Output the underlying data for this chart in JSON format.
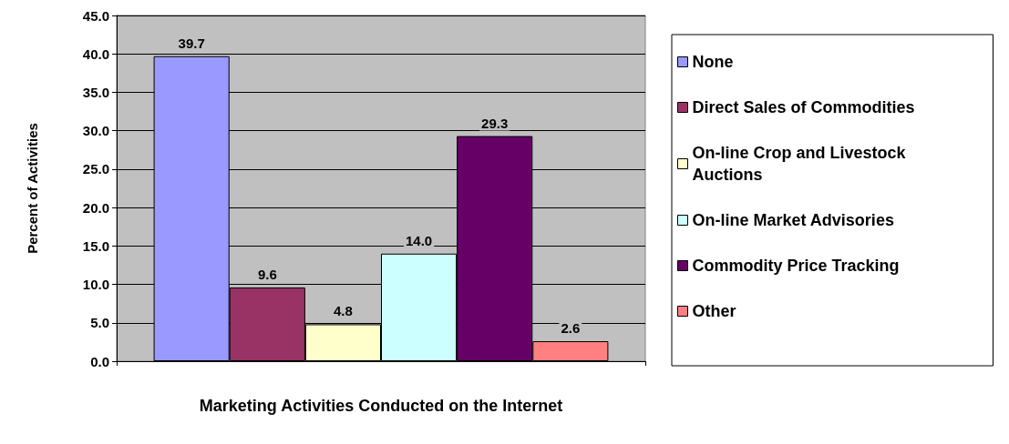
{
  "chart_data": {
    "type": "bar",
    "xlabel": "Marketing Activities Conducted on the Internet",
    "ylabel": "Percent of Activities",
    "categories": [
      null
    ],
    "series": [
      {
        "name": "None",
        "color": "#9999ff",
        "values": [
          39.7
        ],
        "value_labels": [
          "39.7"
        ]
      },
      {
        "name": "Direct Sales of Commodities",
        "color": "#993366",
        "values": [
          9.6
        ],
        "value_labels": [
          "9.6"
        ]
      },
      {
        "name": "On-line Crop and Livestock Auctions",
        "color": "#ffffcc",
        "values": [
          4.8
        ],
        "value_labels": [
          "4.8"
        ]
      },
      {
        "name": "On-line Market Advisories",
        "color": "#ccffff",
        "values": [
          14.0
        ],
        "value_labels": [
          "14.0"
        ]
      },
      {
        "name": "Commodity Price Tracking",
        "color": "#660066",
        "values": [
          29.3
        ],
        "value_labels": [
          "29.3"
        ]
      },
      {
        "name": "Other",
        "color": "#ff8080",
        "values": [
          2.6
        ],
        "value_labels": [
          "2.6"
        ]
      }
    ],
    "ylim": [
      0,
      45
    ],
    "yticks": [
      {
        "value": 0,
        "label": "0.0"
      },
      {
        "value": 5,
        "label": "5.0"
      },
      {
        "value": 10,
        "label": "10.0"
      },
      {
        "value": 15,
        "label": "15.0"
      },
      {
        "value": 20,
        "label": "20.0"
      },
      {
        "value": 25,
        "label": "25.0"
      },
      {
        "value": 30,
        "label": "30.0"
      },
      {
        "value": 35,
        "label": "35.0"
      },
      {
        "value": 40,
        "label": "40.0"
      },
      {
        "value": 45,
        "label": "45.0"
      }
    ],
    "grid": "y",
    "legend": "right"
  }
}
